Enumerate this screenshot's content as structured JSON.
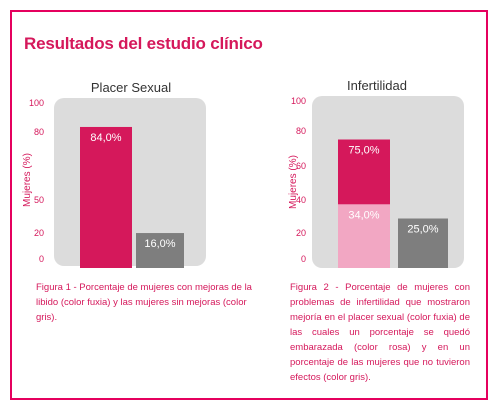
{
  "heading": "Resultados del estudio clínico",
  "colors": {
    "fuchsia": "#d5185b",
    "pink": "#f2a7c3",
    "gray": "#7e7e7e",
    "panel_bg": "#dcdcdc",
    "accent": "#e5005e"
  },
  "chart_data": [
    {
      "type": "bar",
      "title": "Placer Sexual",
      "ylabel": "Mujeres  (%)",
      "ylim": [
        0,
        100
      ],
      "yticks": [
        "100",
        "80",
        "50",
        "20",
        "0"
      ],
      "categories": [
        "",
        ""
      ],
      "series": [
        {
          "values": [
            84.0,
            16.0
          ],
          "colors": [
            "fuchsia",
            "gray"
          ],
          "labels": [
            "84,0%",
            "16,0%"
          ]
        }
      ]
    },
    {
      "type": "bar",
      "title": "Infertilidad",
      "ylabel": "Mujeres (%)",
      "ylim": [
        0,
        100
      ],
      "yticks": [
        "100",
        "80",
        "60",
        "40",
        "20",
        "0"
      ],
      "categories": [
        "",
        ""
      ],
      "series": [
        {
          "values": [
            75.0,
            25.0
          ],
          "colors": [
            "fuchsia",
            "gray"
          ],
          "labels": [
            "75,0%",
            "25,0%"
          ]
        },
        {
          "values": [
            34.0,
            null
          ],
          "colors": [
            "pink",
            null
          ],
          "labels": [
            "34,0%",
            null
          ]
        }
      ]
    }
  ],
  "captions": {
    "fig1": "Figura 1 - Porcentaje de mujeres con mejoras de la libido (color fuxia) y las mujeres sin mejoras (color gris).",
    "fig2": "Figura 2 - Porcentaje de mujeres con problemas de infertilidad que mostraron mejoría en el placer sexual (color fuxia) de las cuales un porcentaje se quedó embarazada (color rosa) y en un porcentaje de las mujeres que no tuvieron efectos (color gris)."
  }
}
